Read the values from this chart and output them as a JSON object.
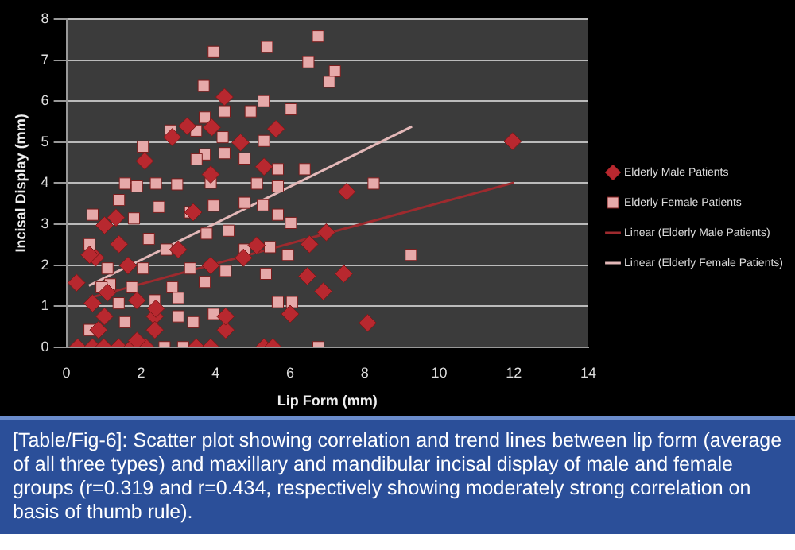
{
  "chart_data": {
    "type": "scatter",
    "xlabel": "Lip Form (mm)",
    "ylabel": "Incisal Display (mm)",
    "xlim": [
      0,
      14
    ],
    "xticks": [
      0,
      2,
      4,
      6,
      8,
      10,
      12,
      14
    ],
    "ylim": [
      0,
      8
    ],
    "yticks": [
      0,
      1,
      2,
      3,
      4,
      5,
      6,
      7,
      8
    ],
    "grid": "y",
    "legend": "right",
    "annotations": [
      "[Table/Fig-6]: Scatter plot showing correlation and trend lines between lip form (average of all three types) and maxillary and mandibular incisal display of male and female groups (r=0.319 and r=0.434, respectively showing moderately strong correlation on basis of thumb rule)."
    ],
    "series": [
      {
        "name": "Elderly Male Patients",
        "type": "scatter",
        "marker": "diamond",
        "color": "#b8282f",
        "x": [
          0.27,
          0.3,
          0.7,
          1.0,
          1.4,
          1.76,
          2.13,
          3.48,
          3.87,
          5.3,
          5.54,
          0.7,
          0.78,
          1.02,
          1.33,
          1.02,
          0.86,
          1.89,
          2.37,
          2.37,
          2.4,
          2.1,
          2.84,
          3.24,
          3.9,
          4.24,
          4.67,
          5.62,
          5.3,
          7.52,
          6.97,
          6.52,
          6.46,
          6.89,
          7.44,
          8.08,
          6.0,
          4.27,
          4.27,
          3.87,
          3.4,
          5.1,
          4.75,
          1.41,
          1.65,
          3.0,
          3.87,
          0.62,
          1.1,
          1.89,
          11.97
        ],
        "values": [
          1.57,
          0,
          0,
          0,
          0,
          0,
          0,
          0,
          0,
          0,
          0,
          1.07,
          2.18,
          2.97,
          3.16,
          0.75,
          0.42,
          0.16,
          0.75,
          0.42,
          0.94,
          4.54,
          5.12,
          5.39,
          5.36,
          6.1,
          4.99,
          5.32,
          4.4,
          3.79,
          2.8,
          2.51,
          1.73,
          1.36,
          1.79,
          0.59,
          0.81,
          0.42,
          0.75,
          4.21,
          3.29,
          2.48,
          2.18,
          2.51,
          1.99,
          2.38,
          1.99,
          2.25,
          1.33,
          1.14,
          5.02
        ]
      },
      {
        "name": "Elderly Female Patients",
        "type": "scatter",
        "marker": "square",
        "color": "#e6a9a9",
        "x": [
          3.95,
          5.38,
          6.75,
          6.49,
          7.2,
          7.05,
          3.68,
          5.29,
          6.02,
          4.94,
          4.24,
          3.71,
          2.79,
          3.48,
          4.19,
          5.3,
          4.24,
          3.71,
          3.49,
          4.78,
          2.05,
          6.39,
          5.67,
          5.11,
          3.87,
          2.97,
          2.4,
          1.57,
          1.89,
          1.41,
          8.24,
          0.7,
          5.67,
          5.27,
          5.67,
          4.78,
          3.95,
          2.48,
          3.32,
          6.02,
          1.81,
          0.62,
          2.21,
          2.68,
          3.76,
          4.35,
          4.78,
          5.46,
          5.94,
          1.1,
          2.05,
          3.32,
          4.27,
          1.17,
          1.76,
          2.84,
          3.71,
          5.35,
          5.67,
          6.05,
          2.37,
          3.0,
          0.62,
          1.57,
          3.0,
          3.4,
          3.95,
          2.63,
          3.13,
          6.76,
          0.94,
          1.4,
          9.24
        ],
        "values": [
          7.2,
          7.32,
          7.58,
          6.95,
          6.73,
          6.47,
          6.37,
          6.0,
          5.8,
          5.75,
          5.75,
          5.6,
          5.28,
          5.28,
          5.12,
          5.03,
          4.73,
          4.7,
          4.58,
          4.6,
          4.89,
          4.34,
          4.34,
          3.99,
          4.01,
          3.97,
          3.99,
          3.99,
          3.92,
          3.59,
          3.99,
          3.23,
          3.92,
          3.46,
          3.23,
          3.52,
          3.45,
          3.42,
          3.29,
          3.03,
          3.14,
          2.51,
          2.64,
          2.38,
          2.77,
          2.84,
          2.38,
          2.44,
          2.25,
          1.92,
          1.92,
          1.92,
          1.86,
          1.53,
          1.46,
          1.46,
          1.59,
          1.79,
          1.1,
          1.1,
          1.14,
          1.2,
          0.42,
          0.61,
          0.75,
          0.61,
          0.81,
          0,
          0,
          0,
          1.46,
          1.07,
          2.25
        ]
      },
      {
        "name": "Linear (Elderly Male Patients)",
        "type": "line",
        "marker": "none",
        "color": "#9e2a2e",
        "x": [
          0.62,
          12
        ],
        "values": [
          1.2,
          4.01
        ]
      },
      {
        "name": "Linear (Elderly Female Patients)",
        "type": "line",
        "marker": "none",
        "color": "#e3b8b8",
        "x": [
          0.6,
          9.27
        ],
        "values": [
          1.5,
          5.38
        ]
      }
    ]
  }
}
